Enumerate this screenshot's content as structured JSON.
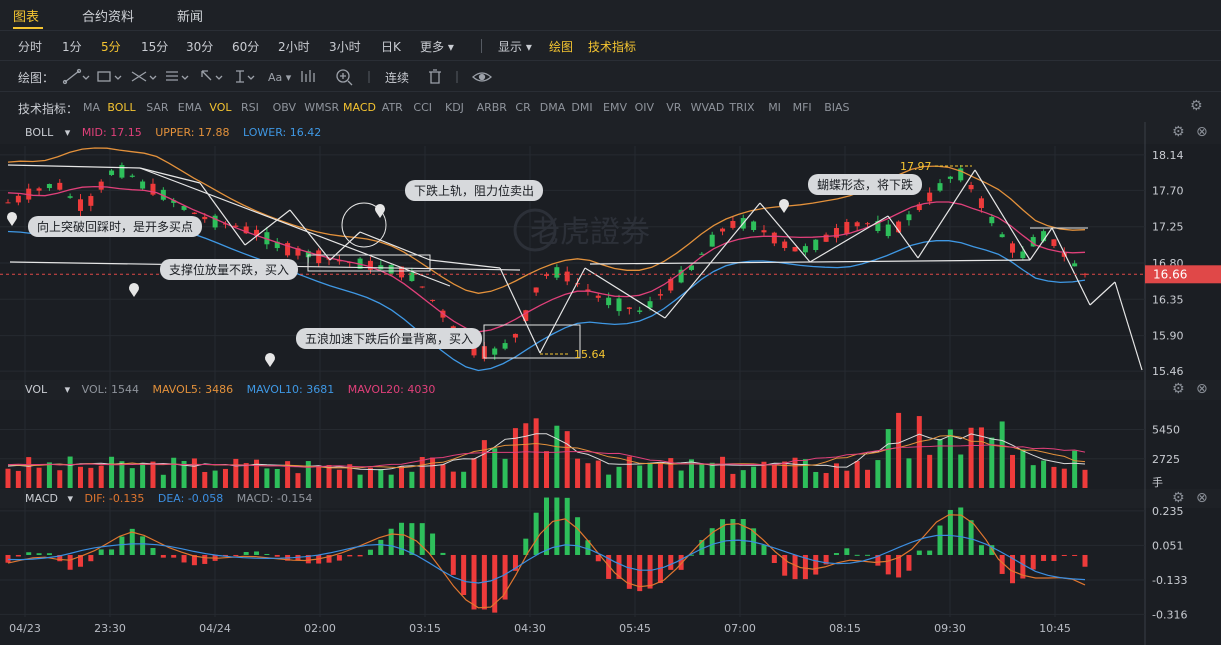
{
  "tabs": [
    {
      "label": "图表",
      "active": true
    },
    {
      "label": "合约资料",
      "active": false
    },
    {
      "label": "新闻",
      "active": false
    }
  ],
  "periods": [
    {
      "label": "分时"
    },
    {
      "label": "1分"
    },
    {
      "label": "5分",
      "active": true
    },
    {
      "label": "15分"
    },
    {
      "label": "30分"
    },
    {
      "label": "60分"
    },
    {
      "label": "2小时"
    },
    {
      "label": "3小时"
    },
    {
      "label": "日K"
    },
    {
      "label": "更多 ▾"
    }
  ],
  "display_menu": "显示 ▾",
  "draw_label": "绘图",
  "tech_label": "技术指标",
  "drawbar": {
    "title": "绘图：",
    "continuous": "连续"
  },
  "indicators": {
    "title": "技术指标：",
    "items": [
      {
        "label": "MA"
      },
      {
        "label": "BOLL",
        "on": true
      },
      {
        "label": "SAR"
      },
      {
        "label": "EMA"
      },
      {
        "label": "VOL",
        "on": true
      },
      {
        "label": "RSI"
      },
      {
        "label": "OBV"
      },
      {
        "label": "WMSR"
      },
      {
        "label": "MACD",
        "on": true
      },
      {
        "label": "ATR"
      },
      {
        "label": "CCI"
      },
      {
        "label": "KDJ"
      },
      {
        "label": "ARBR"
      },
      {
        "label": "CR"
      },
      {
        "label": "DMA"
      },
      {
        "label": "DMI"
      },
      {
        "label": "EMV"
      },
      {
        "label": "OIV"
      },
      {
        "label": "VR"
      },
      {
        "label": "WVAD"
      },
      {
        "label": "TRIX"
      },
      {
        "label": "MI"
      },
      {
        "label": "MFI"
      },
      {
        "label": "BIAS"
      }
    ]
  },
  "colors": {
    "up": "#2ebf5b",
    "down": "#ee3b3b",
    "mid": "#e0407a",
    "upper": "#e3913b",
    "lower": "#3f98e4",
    "accent": "#f4c431",
    "dif": "#e0762f",
    "dea": "#3c8ee0"
  },
  "watermark": "老虎證券",
  "chart_data": [
    {
      "type": "candlestick",
      "name": "BOLL",
      "legend": {
        "name": "BOLL",
        "mid": "MID: 17.15",
        "upper": "UPPER: 17.88",
        "lower": "LOWER: 16.42"
      },
      "ylim": [
        15.35,
        18.25
      ],
      "yticks": [
        "18.14",
        "17.70",
        "17.25",
        "16.80",
        "16.35",
        "15.90",
        "15.46"
      ],
      "current_price": "16.66",
      "high_marker": "17.97",
      "low_marker": "15.64",
      "price_path": [
        17.55,
        17.6,
        17.68,
        17.74,
        17.78,
        17.62,
        17.5,
        17.6,
        17.9,
        17.95,
        17.88,
        17.75,
        17.7,
        17.6,
        17.5,
        17.42,
        17.35,
        17.3,
        17.28,
        17.22,
        17.18,
        17.1,
        17.0,
        16.95,
        16.92,
        16.88,
        16.85,
        16.82,
        16.8,
        16.78,
        16.75,
        16.72,
        16.68,
        16.6,
        16.4,
        16.2,
        15.95,
        15.75,
        15.7,
        15.68,
        15.75,
        15.9,
        16.2,
        16.6,
        16.7,
        16.65,
        16.55,
        16.45,
        16.35,
        16.3,
        16.25,
        16.2,
        16.3,
        16.45,
        16.6,
        16.7,
        16.9,
        17.1,
        17.25,
        17.3,
        17.28,
        17.2,
        17.1,
        17.0,
        16.95,
        17.0,
        17.1,
        17.18,
        17.25,
        17.3,
        17.28,
        17.2,
        17.25,
        17.4,
        17.55,
        17.7,
        17.85,
        17.9,
        17.7,
        17.45,
        17.2,
        17.0,
        16.9,
        17.1,
        17.15,
        16.95,
        16.8,
        16.66
      ],
      "annotations": [
        "向上突破回踩时，是开多买点",
        "支撑位放量不跌，买入",
        "下跌上轨，阻力位卖出",
        "五浪加速下跌后价量背离，买入",
        "蝴蝶形态，将下跌"
      ]
    },
    {
      "type": "bar",
      "name": "VOL",
      "legend": {
        "name": "VOL",
        "vol": "VOL: 1544",
        "mavol5": "MAVOL5: 3486",
        "mavol10": "MAVOL10: 3681",
        "mavol20": "MAVOL20: 4030"
      },
      "ylim": [
        0,
        8200
      ],
      "yticks": [
        "5450",
        "2725"
      ],
      "unit": "手"
    },
    {
      "type": "bar",
      "name": "MACD",
      "legend": {
        "name": "MACD",
        "dif": "DIF: -0.135",
        "dea": "DEA: -0.058",
        "macd": "MACD: -0.154"
      },
      "ylim": [
        -0.33,
        0.25
      ],
      "yticks": [
        "0.235",
        "0.051",
        "-0.133",
        "-0.316"
      ]
    }
  ],
  "xaxis": [
    "04/23",
    "23:30",
    "04/24",
    "02:00",
    "03:15",
    "04:30",
    "05:45",
    "07:00",
    "08:15",
    "09:30",
    "10:45"
  ]
}
